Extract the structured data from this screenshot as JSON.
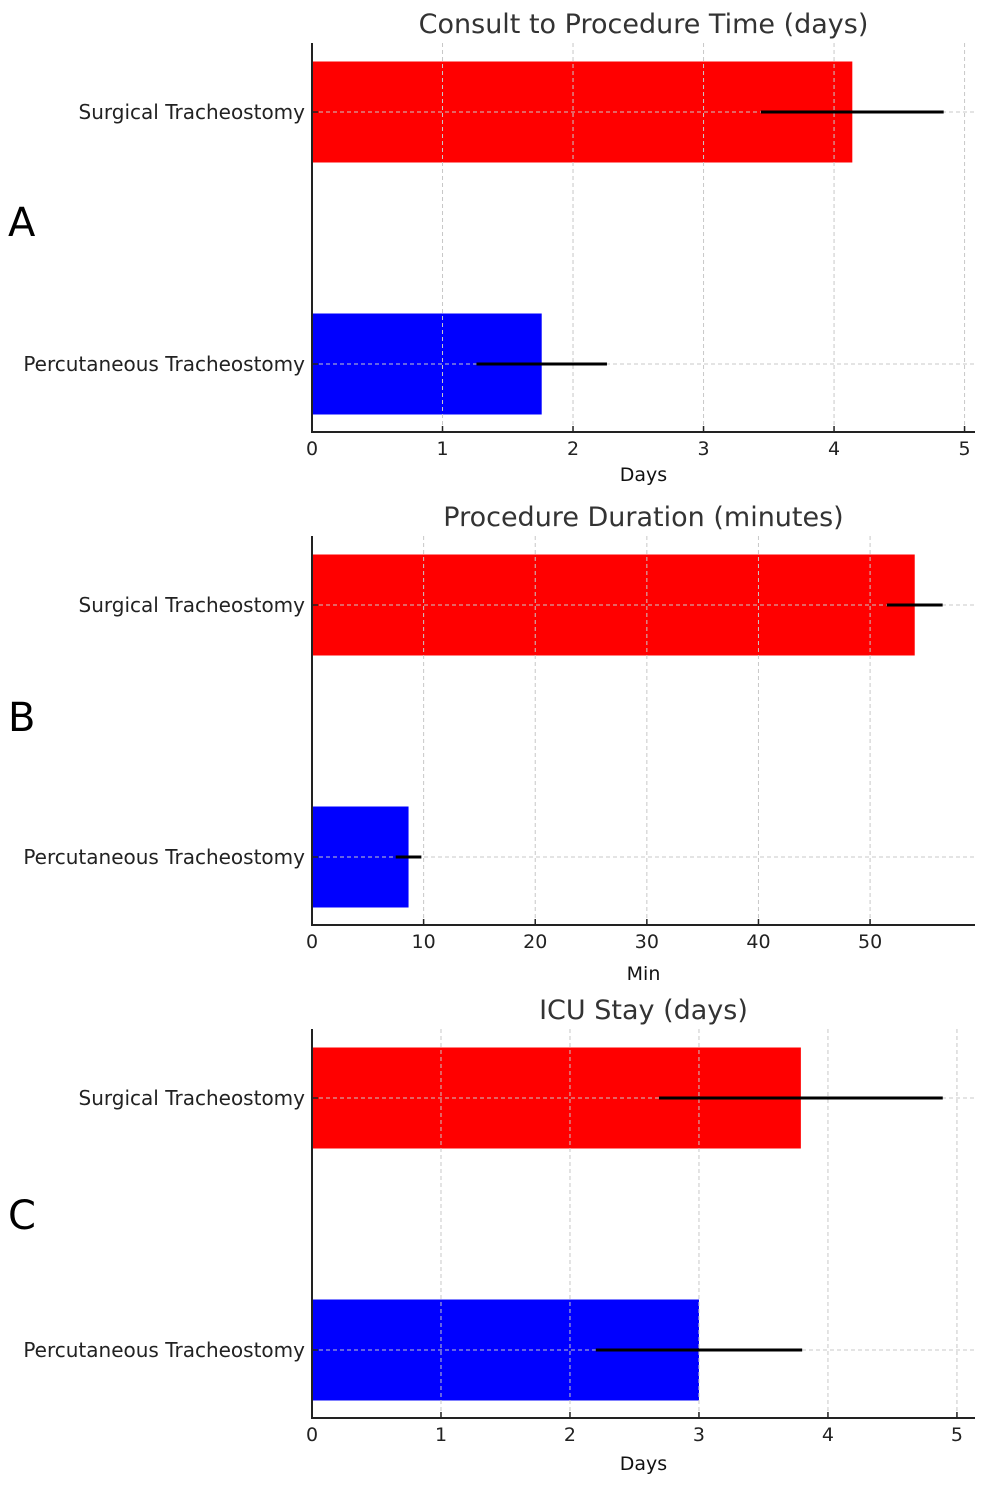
{
  "figure": {
    "panel_labels": [
      "A",
      "B",
      "C"
    ]
  },
  "chart_data": [
    {
      "type": "bar",
      "orientation": "horizontal",
      "panel": "A",
      "title": "Consult to Procedure Time (days)",
      "xlabel": "Days",
      "ylabel": "",
      "categories": [
        "Surgical Tracheostomy",
        "Percutaneous Tracheostomy"
      ],
      "values": [
        4.14,
        1.76
      ],
      "errors": [
        0.7,
        0.5
      ],
      "colors": [
        "#ff0000",
        "#0000ff"
      ],
      "xlim": [
        0,
        5.08
      ],
      "xticks": [
        0,
        1,
        2,
        3,
        4,
        5
      ],
      "xtick_labels": [
        "0",
        "1",
        "2",
        "3",
        "4",
        "5"
      ],
      "grid": true,
      "legend": "none"
    },
    {
      "type": "bar",
      "orientation": "horizontal",
      "panel": "B",
      "title": "Procedure Duration (minutes)",
      "xlabel": "Min",
      "ylabel": "",
      "categories": [
        "Surgical Tracheostomy",
        "Percutaneous Tracheostomy"
      ],
      "values": [
        54.0,
        8.65
      ],
      "errors": [
        2.5,
        1.15
      ],
      "colors": [
        "#ff0000",
        "#0000ff"
      ],
      "xlim": [
        0,
        59.4
      ],
      "xticks": [
        0,
        10,
        20,
        30,
        40,
        50
      ],
      "xtick_labels": [
        "0",
        "10",
        "20",
        "30",
        "40",
        "50"
      ],
      "grid": true,
      "legend": "none"
    },
    {
      "type": "bar",
      "orientation": "horizontal",
      "panel": "C",
      "title": "ICU Stay (days)",
      "xlabel": "Days",
      "ylabel": "",
      "categories": [
        "Surgical Tracheostomy",
        "Percutaneous Tracheostomy"
      ],
      "values": [
        3.79,
        3.0
      ],
      "errors": [
        1.1,
        0.8
      ],
      "colors": [
        "#ff0000",
        "#0000ff"
      ],
      "xlim": [
        0,
        5.14
      ],
      "xticks": [
        0,
        1,
        2,
        3,
        4,
        5
      ],
      "xtick_labels": [
        "0",
        "1",
        "2",
        "3",
        "4",
        "5"
      ],
      "grid": true,
      "legend": "none"
    }
  ]
}
